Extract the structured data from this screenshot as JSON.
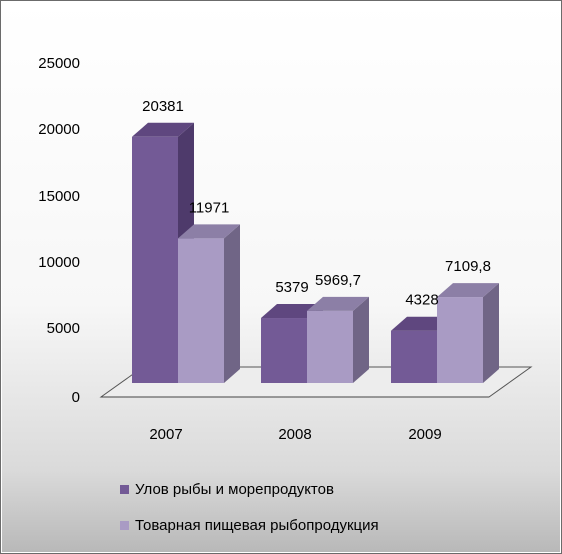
{
  "chart_data": {
    "type": "bar",
    "title": "",
    "xlabel": "",
    "ylabel": "",
    "categories": [
      "2007",
      "2008",
      "2009"
    ],
    "series": [
      {
        "name": "Улов рыбы и морепродуктов",
        "values": [
          20381,
          5379,
          4328
        ],
        "labels": [
          "20381",
          "5379",
          "4328"
        ],
        "color": "#735a96",
        "side_color": "#4e3a6b",
        "top_color": "#5f477f"
      },
      {
        "name": "Товарная пищевая рыбопродукция",
        "values": [
          11971,
          5969.7,
          7109.8
        ],
        "labels": [
          "11971",
          "5969,7",
          "7109,8"
        ],
        "color": "#a99bc4",
        "side_color": "#706586",
        "top_color": "#8c7fa6"
      }
    ],
    "ylim": [
      0,
      25000
    ],
    "yticks": [
      0,
      5000,
      10000,
      15000,
      20000,
      25000
    ],
    "legend_position": "bottom",
    "grid": false,
    "style": "3d-clustered-column"
  }
}
